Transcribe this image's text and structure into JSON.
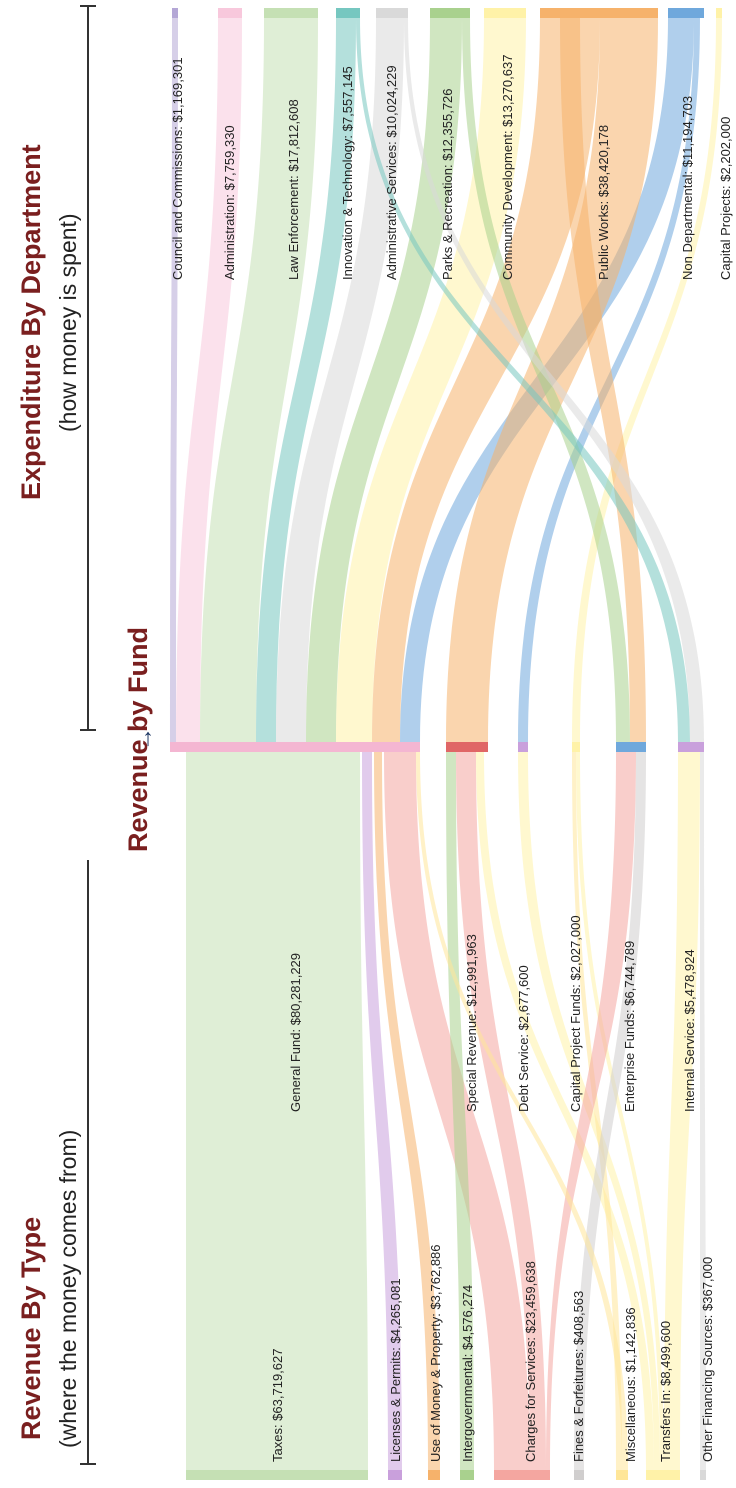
{
  "headers": {
    "revenue_by_type": {
      "title": "Revenue By Type",
      "subtitle": "(where the money comes from)"
    },
    "revenue_by_fund": {
      "title": "Revenue by Fund",
      "arrow": "→"
    },
    "expenditure": {
      "title": "Expenditure By Department",
      "subtitle": "(how money is spent)"
    }
  },
  "revenue_types": [
    {
      "id": "taxes",
      "label": "Taxes: $63,719,627",
      "value": 63719627,
      "color": "#c5e0b4"
    },
    {
      "id": "licenses",
      "label": "Licenses & Permits: $4,265,081",
      "value": 4265081,
      "color": "#c9a0dc"
    },
    {
      "id": "money",
      "label": "Use of Money & Property: $3,762,886",
      "value": 3762886,
      "color": "#f6b26b"
    },
    {
      "id": "intergov",
      "label": "Intergovernmental: $4,576,274",
      "value": 4576274,
      "color": "#a9d18e"
    },
    {
      "id": "charges",
      "label": "Charges for Services: $23,459,638",
      "value": 23459638,
      "color": "#f4a6a0"
    },
    {
      "id": "fines",
      "label": "Fines & Forfeitures: $408,563",
      "value": 408563,
      "color": "#d0cece"
    },
    {
      "id": "misc",
      "label": "Miscellaneous: $1,142,836",
      "value": 1142836,
      "color": "#ffe699"
    },
    {
      "id": "transfers",
      "label": "Transfers In: $8,499,600",
      "value": 8499600,
      "color": "#fff2a8"
    },
    {
      "id": "otherfin",
      "label": "Other Financing Sources: $367,000",
      "value": 367000,
      "color": "#d9d9d9"
    }
  ],
  "funds": [
    {
      "id": "general",
      "label": "General Fund: $80,281,229",
      "value": 80281229,
      "color": "#f4b6d2"
    },
    {
      "id": "special",
      "label": "Special Revenue: $12,991,963",
      "value": 12991963,
      "color": "#e06666"
    },
    {
      "id": "debt",
      "label": "Debt Service: $2,677,600",
      "value": 2677600,
      "color": "#c9a0dc"
    },
    {
      "id": "capproj",
      "label": "Capital Project Funds: $2,027,000",
      "value": 2027000,
      "color": "#fff2a8"
    },
    {
      "id": "enterprise",
      "label": "Enterprise Funds: $6,744,789",
      "value": 6744789,
      "color": "#6fa8dc"
    },
    {
      "id": "internal",
      "label": "Internal Service: $5,478,924",
      "value": 5478924,
      "color": "#c9a0dc"
    }
  ],
  "departments": [
    {
      "id": "council",
      "label": "Council and Commissions: $1,169,301",
      "value": 1169301,
      "color": "#b4a7d6"
    },
    {
      "id": "admin",
      "label": "Administration: $7,759,330",
      "value": 7759330,
      "color": "#f8c8dc"
    },
    {
      "id": "law",
      "label": "Law Enforcement: $17,812,608",
      "value": 17812608,
      "color": "#c5e0b4"
    },
    {
      "id": "innov",
      "label": "Innovation & Technology: $7,557,145",
      "value": 7557145,
      "color": "#76c7c0"
    },
    {
      "id": "adminsvc",
      "label": "Administrative Services: $10,024,229",
      "value": 10024229,
      "color": "#d9d9d9"
    },
    {
      "id": "parks",
      "label": "Parks & Recreation: $12,355,726",
      "value": 12355726,
      "color": "#a9d18e"
    },
    {
      "id": "community",
      "label": "Community Development: $13,270,637",
      "value": 13270637,
      "color": "#fff2a8"
    },
    {
      "id": "publicworks",
      "label": "Public Works: $38,420,178",
      "value": 38420178,
      "color": "#f6b26b"
    },
    {
      "id": "nondept",
      "label": "Non Departmental: $11,194,703",
      "value": 11194703,
      "color": "#6fa8dc"
    },
    {
      "id": "capital",
      "label": "Capital Projects: $2,202,000",
      "value": 2202000,
      "color": "#fff2a8"
    }
  ]
}
